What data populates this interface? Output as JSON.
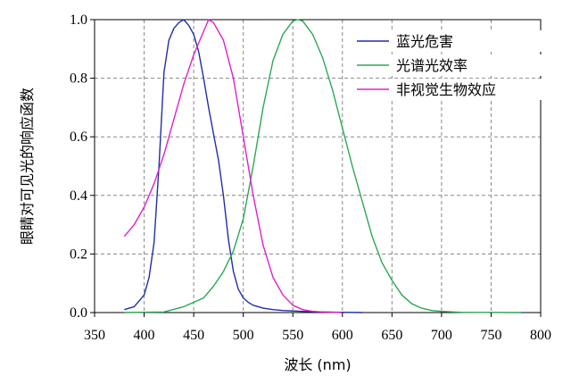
{
  "chart_data": {
    "type": "line",
    "title": "",
    "xlabel": "波长 (nm)",
    "ylabel": "眼睛对可见光的响应函数",
    "xlim": [
      350,
      800
    ],
    "ylim": [
      0,
      1.0
    ],
    "x_ticks": [
      "350",
      "400",
      "450",
      "500",
      "550",
      "600",
      "650",
      "700",
      "750",
      "800"
    ],
    "y_ticks": [
      "0.0",
      "0.2",
      "0.4",
      "0.6",
      "0.8",
      "1.0"
    ],
    "grid": true,
    "legend_position": "top-right",
    "series": [
      {
        "name": "蓝光危害",
        "color": "#1f2fa8",
        "points": [
          [
            380,
            0.01
          ],
          [
            390,
            0.02
          ],
          [
            400,
            0.06
          ],
          [
            405,
            0.12
          ],
          [
            410,
            0.24
          ],
          [
            415,
            0.5
          ],
          [
            420,
            0.82
          ],
          [
            425,
            0.93
          ],
          [
            430,
            0.97
          ],
          [
            435,
            0.99
          ],
          [
            440,
            1.0
          ],
          [
            445,
            0.98
          ],
          [
            450,
            0.95
          ],
          [
            455,
            0.89
          ],
          [
            460,
            0.8
          ],
          [
            465,
            0.7
          ],
          [
            470,
            0.61
          ],
          [
            475,
            0.52
          ],
          [
            480,
            0.4
          ],
          [
            485,
            0.25
          ],
          [
            490,
            0.14
          ],
          [
            495,
            0.08
          ],
          [
            500,
            0.05
          ],
          [
            505,
            0.035
          ],
          [
            510,
            0.025
          ],
          [
            520,
            0.015
          ],
          [
            530,
            0.01
          ],
          [
            540,
            0.007
          ],
          [
            560,
            0.004
          ],
          [
            580,
            0.002
          ],
          [
            600,
            0.001
          ],
          [
            620,
            0.0
          ]
        ]
      },
      {
        "name": "光谱光效率",
        "color": "#2aa855",
        "points": [
          [
            380,
            0.0
          ],
          [
            420,
            0.002
          ],
          [
            440,
            0.02
          ],
          [
            460,
            0.05
          ],
          [
            470,
            0.09
          ],
          [
            480,
            0.14
          ],
          [
            490,
            0.21
          ],
          [
            500,
            0.32
          ],
          [
            510,
            0.5
          ],
          [
            520,
            0.7
          ],
          [
            530,
            0.86
          ],
          [
            540,
            0.95
          ],
          [
            550,
            0.995
          ],
          [
            555,
            1.0
          ],
          [
            560,
            0.995
          ],
          [
            570,
            0.95
          ],
          [
            580,
            0.87
          ],
          [
            590,
            0.76
          ],
          [
            600,
            0.63
          ],
          [
            610,
            0.5
          ],
          [
            620,
            0.38
          ],
          [
            630,
            0.26
          ],
          [
            640,
            0.17
          ],
          [
            650,
            0.11
          ],
          [
            660,
            0.06
          ],
          [
            670,
            0.03
          ],
          [
            680,
            0.015
          ],
          [
            690,
            0.007
          ],
          [
            700,
            0.004
          ],
          [
            720,
            0.001
          ],
          [
            780,
            0.0
          ]
        ]
      },
      {
        "name": "非视觉生物效应",
        "color": "#e020c8",
        "points": [
          [
            380,
            0.26
          ],
          [
            390,
            0.3
          ],
          [
            400,
            0.36
          ],
          [
            410,
            0.44
          ],
          [
            420,
            0.54
          ],
          [
            430,
            0.66
          ],
          [
            440,
            0.78
          ],
          [
            450,
            0.88
          ],
          [
            460,
            0.96
          ],
          [
            465,
            1.0
          ],
          [
            470,
            0.99
          ],
          [
            480,
            0.93
          ],
          [
            490,
            0.8
          ],
          [
            500,
            0.6
          ],
          [
            510,
            0.4
          ],
          [
            520,
            0.23
          ],
          [
            530,
            0.12
          ],
          [
            540,
            0.06
          ],
          [
            550,
            0.025
          ],
          [
            560,
            0.01
          ],
          [
            570,
            0.004
          ],
          [
            580,
            0.002
          ],
          [
            600,
            0.0
          ]
        ]
      }
    ]
  }
}
